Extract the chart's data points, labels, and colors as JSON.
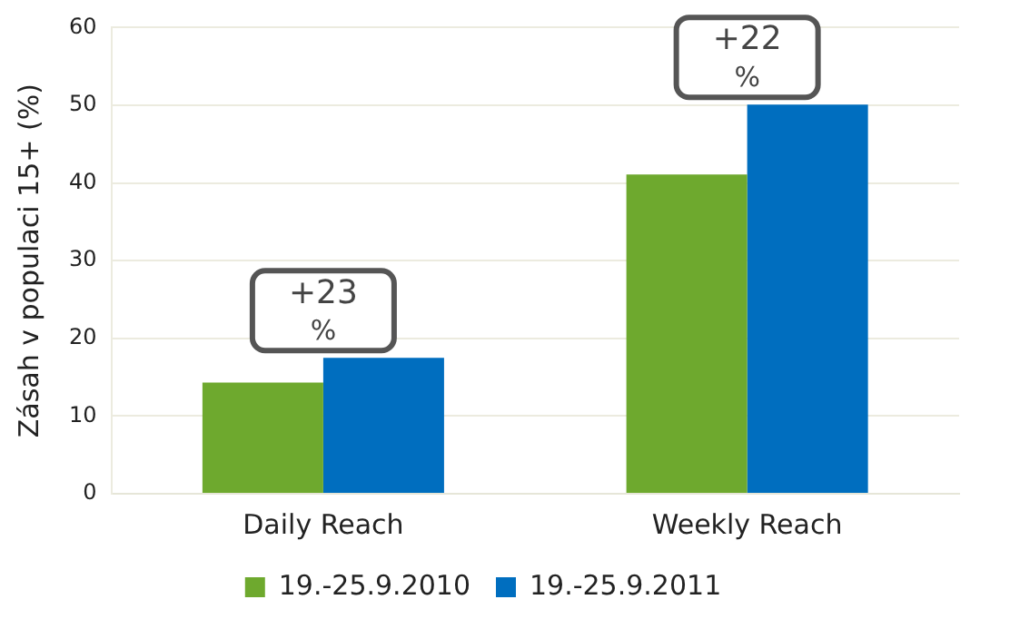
{
  "chart_data": {
    "type": "bar",
    "ylabel": "Zásah v populaci 15+ (%)",
    "categories": [
      "Daily Reach",
      "Weekly Reach"
    ],
    "series": [
      {
        "name": "19.-25.9.2010",
        "color": "#6ea92e",
        "values": [
          14.3,
          41.1
        ]
      },
      {
        "name": "19.-25.9.2011",
        "color": "#006ebf",
        "values": [
          17.5,
          50.1
        ]
      }
    ],
    "ylim": [
      0,
      60
    ],
    "yticks": [
      0,
      10,
      20,
      30,
      40,
      50,
      60
    ],
    "grid": "y",
    "legend": "bottom",
    "annotations": [
      "+23 %",
      "+22 %"
    ]
  }
}
